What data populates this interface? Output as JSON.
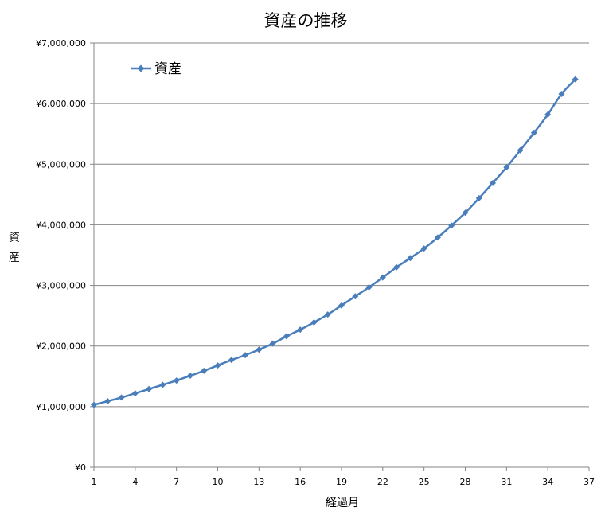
{
  "chart_data": {
    "type": "line",
    "title": "資産の推移",
    "xlabel": "経過月",
    "ylabel": "資産",
    "xlim": [
      1,
      37
    ],
    "ylim": [
      0,
      7000000
    ],
    "x_ticks": [
      "1",
      "4",
      "7",
      "10",
      "13",
      "16",
      "19",
      "22",
      "25",
      "28",
      "31",
      "34",
      "37"
    ],
    "y_ticks": [
      "¥0",
      "¥1,000,000",
      "¥2,000,000",
      "¥3,000,000",
      "¥4,000,000",
      "¥5,000,000",
      "¥6,000,000",
      "¥7,000,000"
    ],
    "grid": "horizontal",
    "legend_position": "top-left",
    "color": "#4a7ebb",
    "series": [
      {
        "name": "資産",
        "x": [
          1,
          2,
          3,
          4,
          5,
          6,
          7,
          8,
          9,
          10,
          11,
          12,
          13,
          14,
          15,
          16,
          17,
          18,
          19,
          20,
          21,
          22,
          23,
          24,
          25,
          26,
          27,
          28,
          29,
          30,
          31,
          32,
          33,
          34,
          35,
          36
        ],
        "values": [
          1030000,
          1090000,
          1150000,
          1220000,
          1290000,
          1360000,
          1430000,
          1510000,
          1590000,
          1680000,
          1770000,
          1850000,
          1940000,
          2040000,
          2160000,
          2270000,
          2390000,
          2520000,
          2670000,
          2820000,
          2970000,
          3130000,
          3300000,
          3450000,
          3610000,
          3790000,
          3990000,
          4200000,
          4440000,
          4690000,
          4950000,
          5230000,
          5520000,
          5820000,
          6160000,
          6400000
        ]
      }
    ]
  }
}
